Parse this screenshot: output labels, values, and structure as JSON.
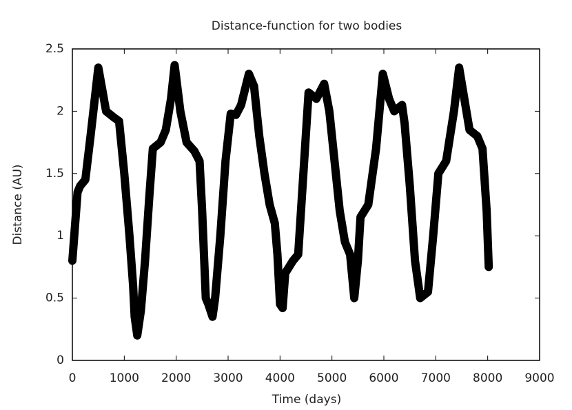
{
  "chart_data": {
    "type": "line",
    "title": "Distance-function for two bodies",
    "xlabel": "Time (days)",
    "ylabel": "Distance (AU)",
    "x": [
      0,
      100,
      150,
      250,
      350,
      500,
      650,
      800,
      900,
      1000,
      1100,
      1170,
      1200,
      1250,
      1320,
      1400,
      1480,
      1550,
      1700,
      1800,
      1900,
      1970,
      2080,
      2200,
      2350,
      2450,
      2500,
      2570,
      2620,
      2700,
      2750,
      2850,
      2950,
      3050,
      3150,
      3250,
      3400,
      3500,
      3600,
      3700,
      3800,
      3900,
      3950,
      4000,
      4050,
      4100,
      4250,
      4350,
      4450,
      4550,
      4700,
      4850,
      4950,
      5050,
      5150,
      5250,
      5350,
      5430,
      5500,
      5550,
      5700,
      5850,
      5980,
      6100,
      6200,
      6350,
      6400,
      6500,
      6600,
      6700,
      6850,
      6950,
      7050,
      7200,
      7350,
      7450,
      7550,
      7650,
      7800,
      7900,
      7980,
      8020
    ],
    "series": [
      {
        "name": "distance",
        "color": "#000000",
        "values": [
          0.8,
          1.35,
          1.4,
          1.45,
          1.8,
          2.35,
          2.0,
          1.95,
          1.92,
          1.5,
          1.0,
          0.6,
          0.35,
          0.2,
          0.4,
          0.8,
          1.3,
          1.7,
          1.75,
          1.85,
          2.1,
          2.37,
          2.0,
          1.75,
          1.68,
          1.6,
          1.2,
          0.5,
          0.45,
          0.35,
          0.5,
          1.0,
          1.6,
          1.98,
          1.97,
          2.05,
          2.3,
          2.2,
          1.8,
          1.5,
          1.25,
          1.1,
          0.85,
          0.45,
          0.42,
          0.7,
          0.8,
          0.85,
          1.5,
          2.15,
          2.1,
          2.22,
          2.0,
          1.6,
          1.2,
          0.95,
          0.85,
          0.5,
          0.8,
          1.15,
          1.25,
          1.7,
          2.3,
          2.1,
          2.0,
          2.05,
          1.9,
          1.4,
          0.8,
          0.5,
          0.55,
          1.0,
          1.5,
          1.6,
          2.0,
          2.35,
          2.1,
          1.85,
          1.8,
          1.7,
          1.2,
          0.75
        ]
      }
    ],
    "xlim": [
      0,
      9000
    ],
    "xticks": [
      0,
      1000,
      2000,
      3000,
      4000,
      5000,
      6000,
      7000,
      8000,
      9000
    ],
    "ylim": [
      0,
      2.5
    ],
    "yticks": [
      0,
      0.5,
      1,
      1.5,
      2,
      2.5
    ]
  }
}
